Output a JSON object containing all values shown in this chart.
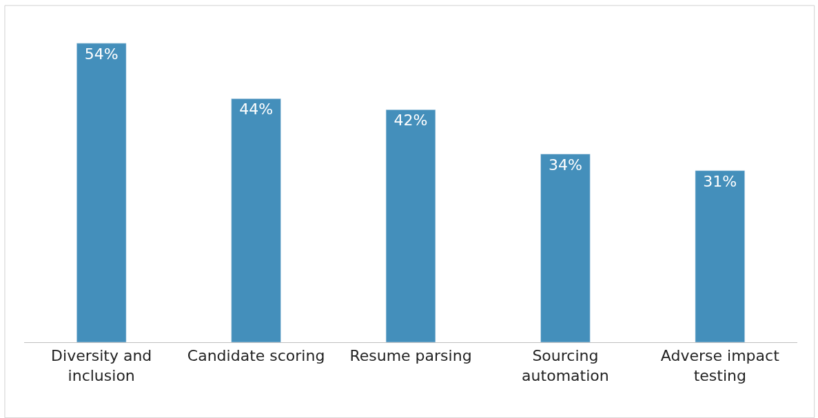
{
  "chart_data": {
    "type": "bar",
    "categories": [
      "Diversity and\ninclusion",
      "Candidate scoring",
      "Resume parsing",
      "Sourcing\nautomation",
      "Adverse impact\ntesting"
    ],
    "values": [
      54,
      44,
      42,
      34,
      31
    ],
    "color": "#448fbb",
    "value_labels": [
      "54%",
      "44%",
      "42%",
      "34%",
      "31%"
    ]
  }
}
